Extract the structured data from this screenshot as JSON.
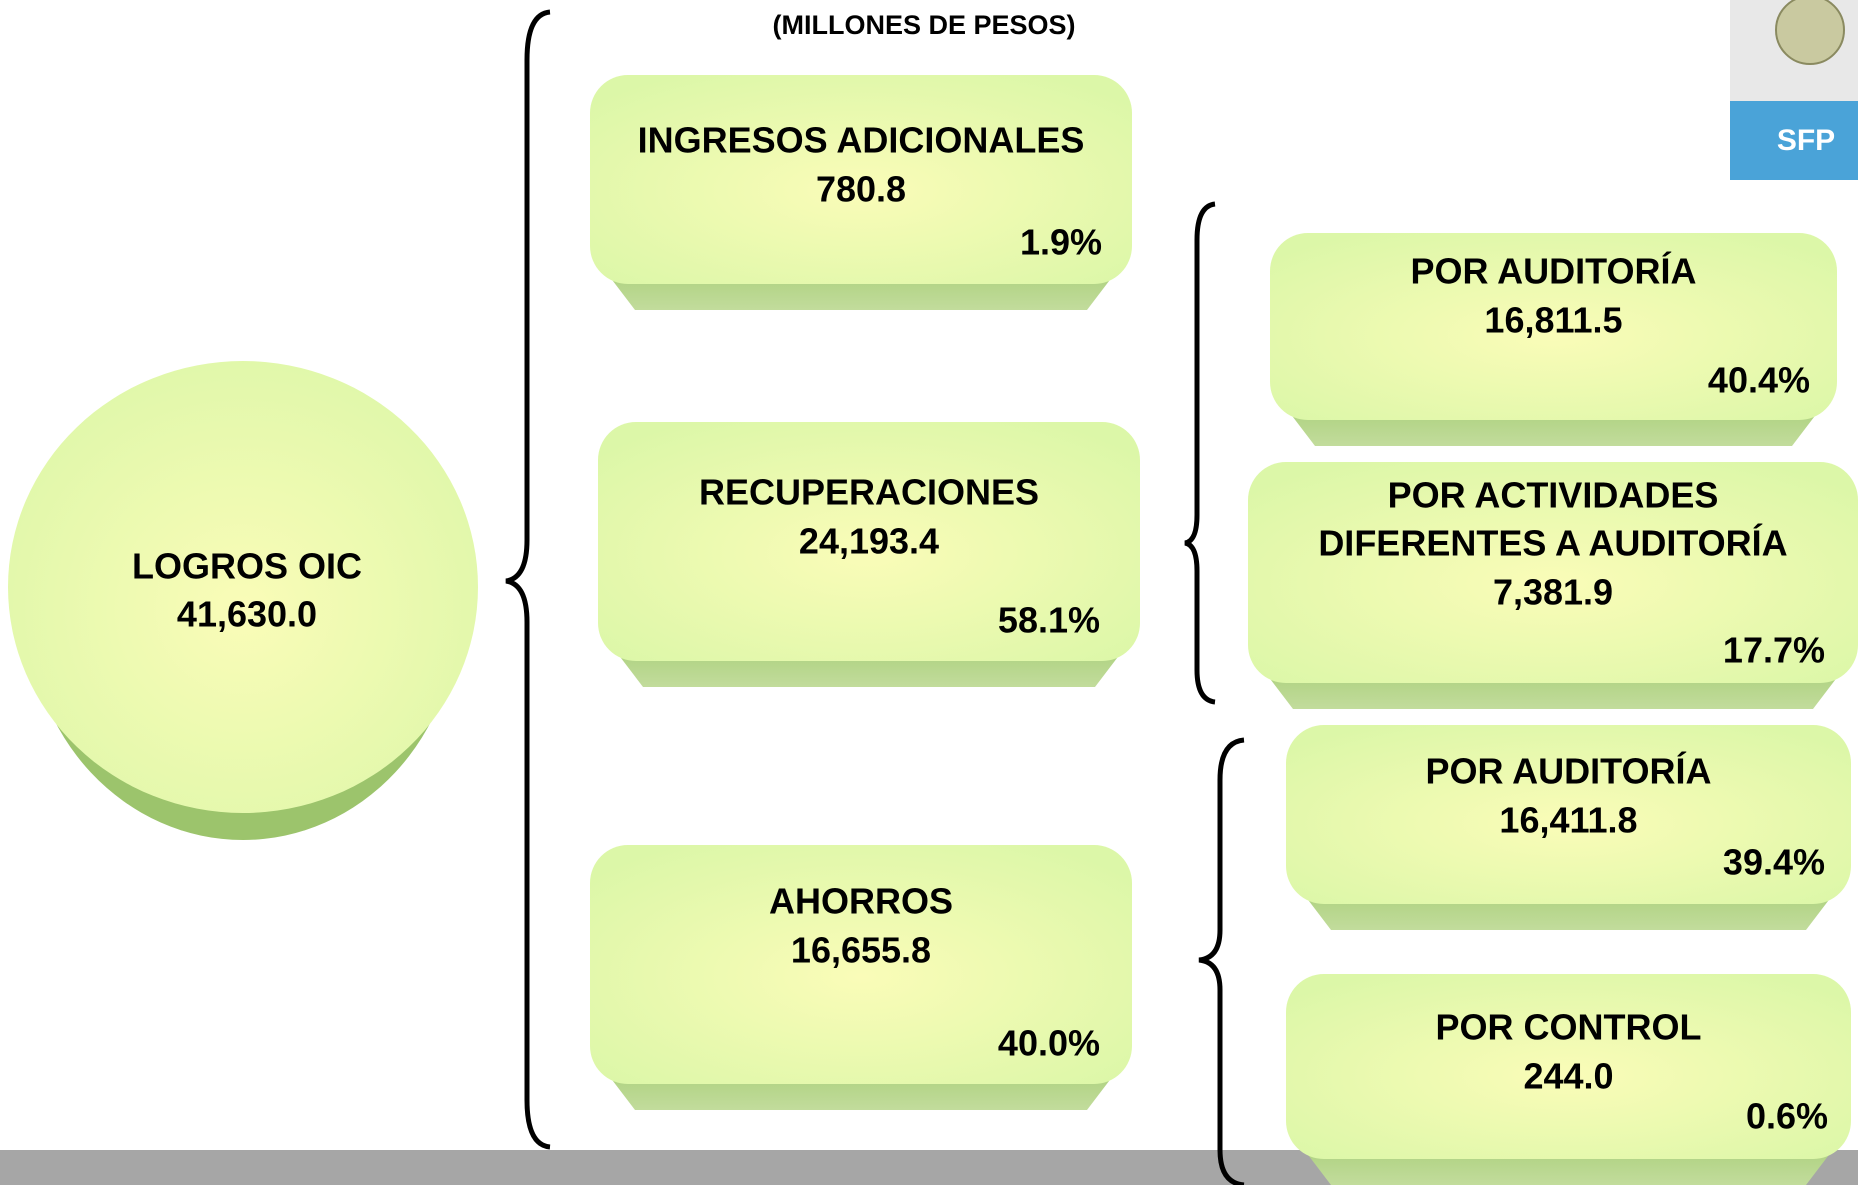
{
  "header": {
    "title": "(MILLONES DE PESOS)",
    "logo": "SFP"
  },
  "root": {
    "label": [
      "LOGROS OIC"
    ],
    "value": "41,630.0"
  },
  "nodes": [
    {
      "label": [
        "INGRESOS ADICIONALES"
      ],
      "value": "780.8",
      "percent": "1.9%"
    },
    {
      "label": [
        "RECUPERACIONES"
      ],
      "value": "24,193.4",
      "percent": "58.1%"
    },
    {
      "label": [
        "AHORROS"
      ],
      "value": "16,655.8",
      "percent": "40.0%"
    },
    {
      "label": [
        "POR AUDITORÍA"
      ],
      "value": "16,811.5",
      "percent": "40.4%"
    },
    {
      "label": [
        "POR ACTIVIDADES",
        "DIFERENTES A AUDITORÍA"
      ],
      "value": "7,381.9",
      "percent": "17.7%"
    },
    {
      "label": [
        "POR AUDITORÍA"
      ],
      "value": "16,411.8",
      "percent": "39.4%"
    },
    {
      "label": [
        "POR CONTROL"
      ],
      "value": "244.0",
      "percent": "0.6%"
    }
  ]
}
